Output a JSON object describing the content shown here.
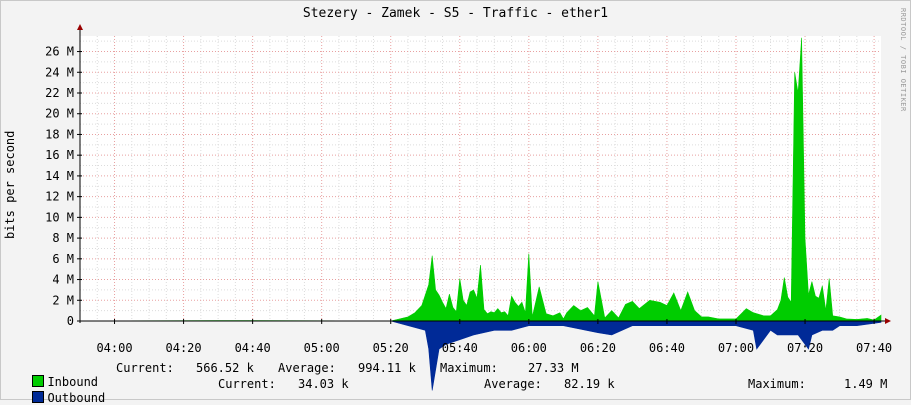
{
  "chart_data": {
    "type": "area",
    "title": "Stezery - Zamek - S5 - Traffic - ether1",
    "ylabel": "bits per second",
    "watermark": "RRDTOOL / TOBI OETIKER",
    "y_unit": "M",
    "ylim": [
      0,
      27.5
    ],
    "y_ticks": [
      0,
      2,
      4,
      6,
      8,
      10,
      12,
      14,
      16,
      18,
      20,
      22,
      24,
      26
    ],
    "y_tick_labels": [
      "0",
      "2 M",
      "4 M",
      "6 M",
      "8 M",
      "10 M",
      "12 M",
      "14 M",
      "16 M",
      "18 M",
      "20 M",
      "22 M",
      "24 M",
      "26 M"
    ],
    "x_tick_labels": [
      "04:00",
      "04:20",
      "04:40",
      "05:00",
      "05:20",
      "05:40",
      "06:00",
      "06:20",
      "06:40",
      "07:00",
      "07:20",
      "07:40"
    ],
    "x_range_minutes": [
      "03:50",
      "07:42"
    ],
    "grid": true,
    "colors": {
      "inbound": "#00cc00",
      "outbound": "#002a97",
      "grid_major": "#e8a0a0",
      "grid_minor": "#dddddd",
      "axis": "#000000",
      "arrow": "#990000"
    },
    "series": [
      {
        "name": "Inbound",
        "x_minutes": [
          "03:50",
          "04:30",
          "05:20",
          "05:25",
          "05:27",
          "05:29",
          "05:31",
          "05:32",
          "05:33",
          "05:34",
          "05:35",
          "05:36",
          "05:37",
          "05:38",
          "05:39",
          "05:40",
          "05:41",
          "05:42",
          "05:43",
          "05:44",
          "05:45",
          "05:46",
          "05:47",
          "05:48",
          "05:49",
          "05:50",
          "05:51",
          "05:52",
          "05:53",
          "05:54",
          "05:55",
          "05:56",
          "05:57",
          "05:58",
          "05:59",
          "06:00",
          "06:01",
          "06:03",
          "06:05",
          "06:07",
          "06:09",
          "06:10",
          "06:11",
          "06:13",
          "06:15",
          "06:17",
          "06:19",
          "06:20",
          "06:22",
          "06:24",
          "06:26",
          "06:28",
          "06:30",
          "06:32",
          "06:35",
          "06:38",
          "06:40",
          "06:42",
          "06:44",
          "06:46",
          "06:48",
          "06:50",
          "06:52",
          "06:55",
          "07:00",
          "07:03",
          "07:05",
          "07:08",
          "07:10",
          "07:12",
          "07:13",
          "07:14",
          "07:15",
          "07:16",
          "07:17",
          "07:18",
          "07:19",
          "07:20",
          "07:21",
          "07:22",
          "07:23",
          "07:24",
          "07:25",
          "07:26",
          "07:27",
          "07:28",
          "07:30",
          "07:32",
          "07:35",
          "07:38",
          "07:40",
          "07:42"
        ],
        "values": [
          0,
          0.05,
          0,
          0.4,
          0.8,
          1.5,
          3.5,
          6.3,
          3.0,
          2.5,
          1.8,
          1.2,
          2.6,
          1.3,
          0.9,
          4.1,
          2.0,
          1.5,
          2.8,
          3.0,
          2.2,
          5.4,
          1.1,
          0.7,
          0.9,
          0.8,
          1.2,
          0.8,
          0.9,
          0.5,
          2.4,
          1.8,
          1.4,
          1.8,
          0.8,
          6.5,
          0.4,
          3.3,
          0.7,
          0.5,
          0.8,
          0.2,
          0.8,
          1.5,
          1.0,
          1.3,
          0.5,
          3.8,
          0.3,
          1.0,
          0.3,
          1.6,
          1.9,
          1.2,
          2.0,
          1.8,
          1.5,
          2.7,
          1.0,
          2.8,
          1.0,
          0.4,
          0.4,
          0.2,
          0.2,
          1.2,
          0.8,
          0.5,
          0.5,
          1.1,
          2.0,
          4.2,
          2.3,
          1.8,
          24.0,
          22.0,
          27.33,
          8.0,
          2.5,
          3.8,
          2.4,
          2.2,
          3.4,
          1.0,
          4.1,
          0.5,
          0.4,
          0.2,
          0.15,
          0.25,
          0.1,
          0.57
        ]
      },
      {
        "name": "Outbound",
        "x_minutes": [
          "03:50",
          "05:20",
          "05:30",
          "05:31",
          "05:32",
          "05:34",
          "05:36",
          "05:40",
          "05:44",
          "05:50",
          "05:55",
          "06:00",
          "06:10",
          "06:20",
          "06:24",
          "06:30",
          "06:40",
          "06:50",
          "07:00",
          "07:05",
          "07:06",
          "07:07",
          "07:10",
          "07:12",
          "07:15",
          "07:18",
          "07:20",
          "07:21",
          "07:22",
          "07:25",
          "07:28",
          "07:30",
          "07:35",
          "07:40",
          "07:42"
        ],
        "values": [
          0,
          0,
          0.2,
          0.6,
          1.49,
          0.6,
          0.5,
          0.4,
          0.3,
          0.2,
          0.2,
          0.1,
          0.1,
          0.25,
          0.3,
          0.1,
          0.1,
          0.1,
          0.1,
          0.2,
          0.6,
          0.5,
          0.2,
          0.3,
          0.3,
          0.3,
          0.5,
          0.6,
          0.3,
          0.2,
          0.2,
          0.1,
          0.1,
          0.05,
          0.03
        ]
      }
    ]
  },
  "legend": {
    "rows": [
      {
        "name": "Inbound",
        "current_label": "Current:",
        "current": "566.52 k",
        "average_label": "Average:",
        "average": "994.11 k",
        "maximum_label": "Maximum:",
        "maximum": "27.33 M"
      },
      {
        "name": "Outbound",
        "current_label": "Current:",
        "current": "34.03 k",
        "average_label": "Average:",
        "average": "82.19 k",
        "maximum_label": "Maximum:",
        "maximum": "1.49 M"
      }
    ]
  }
}
